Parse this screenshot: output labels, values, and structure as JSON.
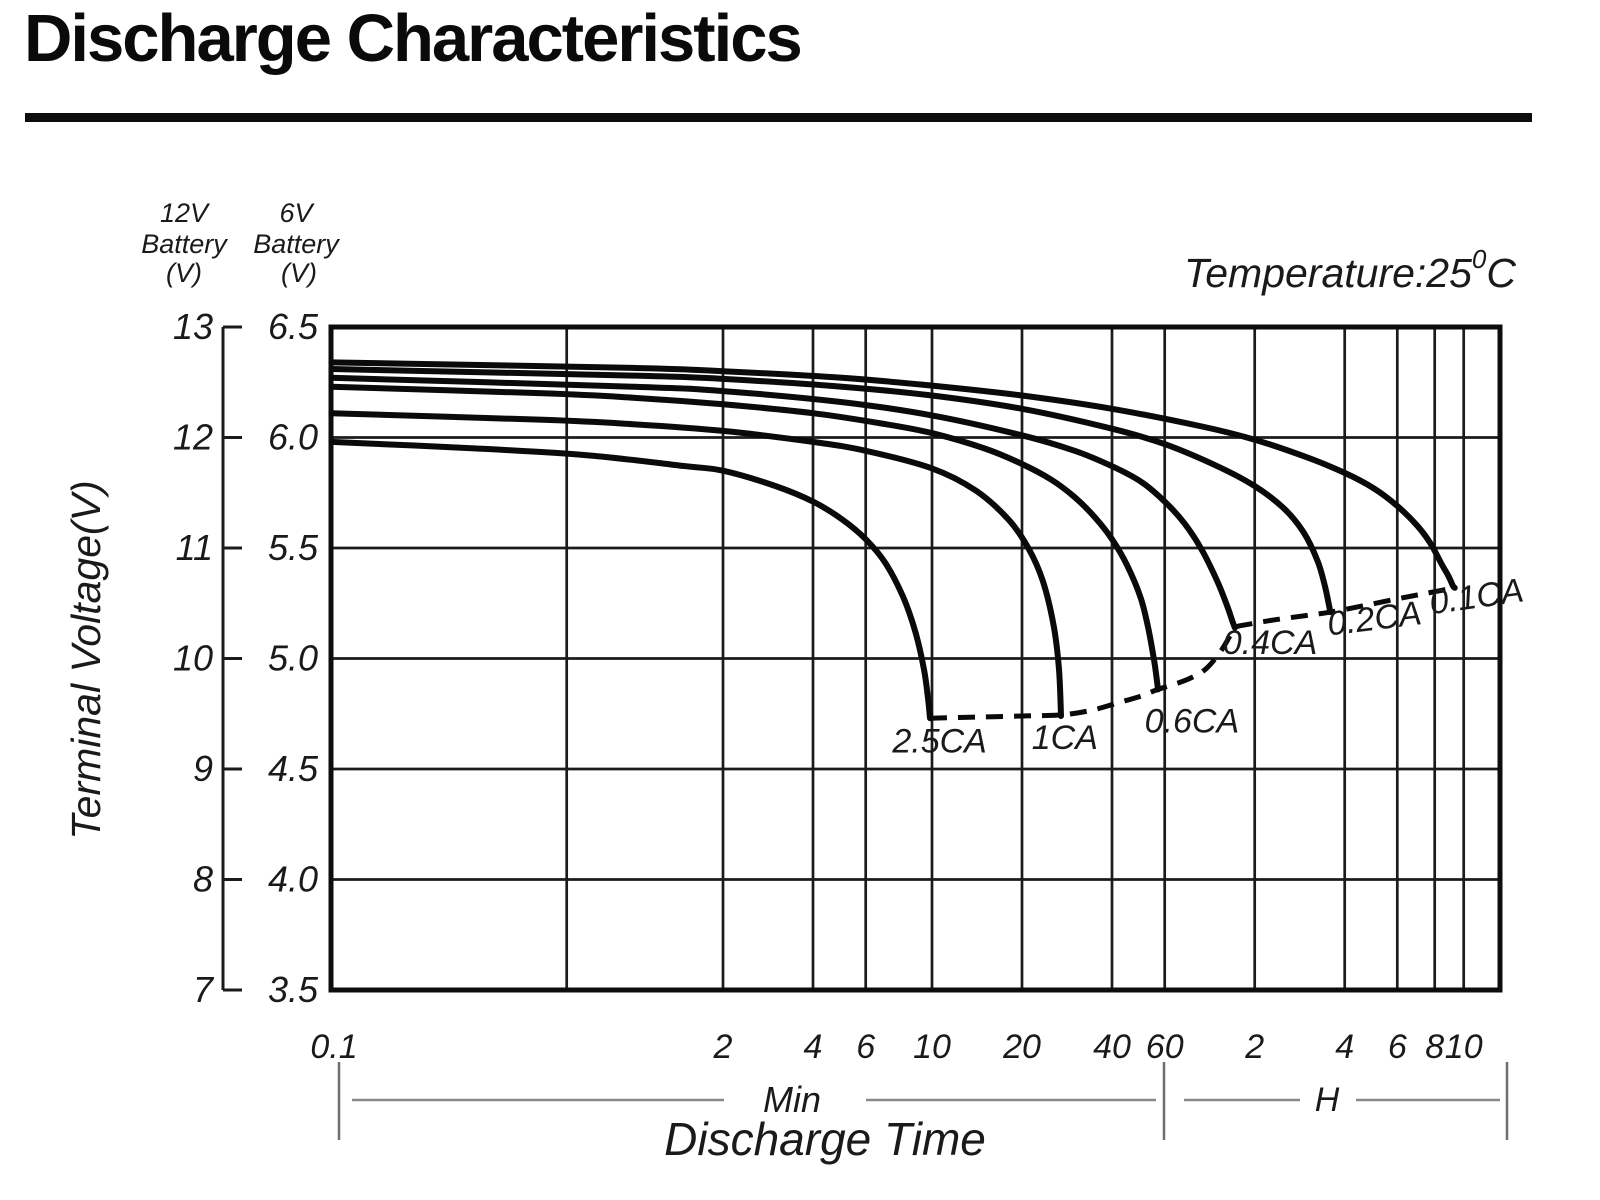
{
  "page": {
    "title": "Discharge Characteristics"
  },
  "header": {
    "axis12v_lines": [
      "12V",
      "Battery",
      "(V)"
    ],
    "axis6v_lines": [
      "6V",
      "Battery",
      "(V)"
    ],
    "temperature": {
      "prefix": "Temperature:25",
      "sup": "0",
      "suffix": "C"
    }
  },
  "axes": {
    "y_label": "Terminal Voltage(V)",
    "x_label": "Discharge Time",
    "unit_min": "Min",
    "unit_hour": "H",
    "y_ticks_12v": [
      "13",
      "12",
      "11",
      "10",
      "9",
      "8",
      "7"
    ],
    "y_ticks_6v": [
      "6.5",
      "6.0",
      "5.5",
      "5.0",
      "4.5",
      "4.0",
      "3.5"
    ]
  },
  "colors": {
    "curve": "#0a0a0a",
    "series_label": "#e62129"
  },
  "chart_data": {
    "type": "line",
    "title": "Discharge Characteristics",
    "xlabel": "Discharge Time",
    "ylabel": "Terminal Voltage(V)",
    "x_scale": "log",
    "x_unit": "minutes",
    "x_range_minutes": [
      0.1,
      800
    ],
    "y_range_6v": [
      3.5,
      6.5
    ],
    "y_range_12v": [
      7,
      13
    ],
    "temperature": "25°C",
    "grid": true,
    "x_gridlines_minutes": [
      0.6,
      2,
      4,
      6,
      10,
      20,
      40,
      60,
      120,
      240,
      360,
      480,
      600
    ],
    "y_gridlines_volts_6v": [
      6.5,
      6.0,
      5.5,
      5.0,
      4.5,
      4.0,
      3.5
    ],
    "x_ticks": [
      {
        "label": "0.1",
        "minutes": 0.1,
        "unit": "Min"
      },
      {
        "label": "2",
        "minutes": 2,
        "unit": "Min"
      },
      {
        "label": "4",
        "minutes": 4,
        "unit": "Min"
      },
      {
        "label": "6",
        "minutes": 6,
        "unit": "Min"
      },
      {
        "label": "10",
        "minutes": 10,
        "unit": "Min"
      },
      {
        "label": "20",
        "minutes": 20,
        "unit": "Min"
      },
      {
        "label": "40",
        "minutes": 40,
        "unit": "Min"
      },
      {
        "label": "60",
        "minutes": 60,
        "unit": "Min"
      },
      {
        "label": "2",
        "minutes": 120,
        "unit": "H"
      },
      {
        "label": "4",
        "minutes": 240,
        "unit": "H"
      },
      {
        "label": "6",
        "minutes": 360,
        "unit": "H"
      },
      {
        "label": "8",
        "minutes": 480,
        "unit": "H"
      },
      {
        "label": "10",
        "minutes": 600,
        "unit": "H"
      }
    ],
    "series": [
      {
        "name": "2.5CA",
        "label": {
          "text": "2.5CA",
          "t": 10.6,
          "v": 4.575,
          "rotate": 0
        },
        "points": [
          [
            0.098,
            5.98
          ],
          [
            0.3,
            5.95
          ],
          [
            0.7,
            5.92
          ],
          [
            1.5,
            5.87
          ],
          [
            2,
            5.85
          ],
          [
            3,
            5.78
          ],
          [
            4,
            5.71
          ],
          [
            5,
            5.63
          ],
          [
            6,
            5.54
          ],
          [
            7,
            5.43
          ],
          [
            8,
            5.28
          ],
          [
            8.8,
            5.12
          ],
          [
            9.4,
            4.95
          ],
          [
            9.7,
            4.82
          ],
          [
            9.85,
            4.73
          ]
        ]
      },
      {
        "name": "1CA",
        "label": {
          "text": "1CA",
          "t": 27.8,
          "v": 4.59,
          "rotate": 0
        },
        "points": [
          [
            0.098,
            6.11
          ],
          [
            0.5,
            6.08
          ],
          [
            1,
            6.06
          ],
          [
            2,
            6.03
          ],
          [
            4,
            5.98
          ],
          [
            6,
            5.94
          ],
          [
            10,
            5.86
          ],
          [
            14,
            5.76
          ],
          [
            18,
            5.63
          ],
          [
            21,
            5.5
          ],
          [
            23.5,
            5.35
          ],
          [
            25.5,
            5.15
          ],
          [
            26.6,
            4.95
          ],
          [
            27,
            4.74
          ]
        ]
      },
      {
        "name": "0.6CA",
        "label": {
          "text": "0.6CA",
          "t": 74,
          "v": 4.665,
          "rotate": 0
        },
        "points": [
          [
            0.098,
            6.23
          ],
          [
            0.5,
            6.2
          ],
          [
            1,
            6.18
          ],
          [
            2,
            6.15
          ],
          [
            4,
            6.11
          ],
          [
            7,
            6.06
          ],
          [
            10,
            6.02
          ],
          [
            15,
            5.95
          ],
          [
            20,
            5.88
          ],
          [
            25,
            5.81
          ],
          [
            30,
            5.73
          ],
          [
            35,
            5.64
          ],
          [
            40,
            5.54
          ],
          [
            45,
            5.42
          ],
          [
            50,
            5.27
          ],
          [
            53,
            5.13
          ],
          [
            55.5,
            4.98
          ],
          [
            57,
            4.86
          ]
        ]
      },
      {
        "name": "0.4CA",
        "label": {
          "text": "0.4CA",
          "t": 135,
          "v": 5.02,
          "rotate": 0
        },
        "points": [
          [
            0.098,
            6.27
          ],
          [
            1,
            6.23
          ],
          [
            2,
            6.21
          ],
          [
            5,
            6.16
          ],
          [
            10,
            6.1
          ],
          [
            20,
            6.01
          ],
          [
            30,
            5.94
          ],
          [
            40,
            5.87
          ],
          [
            50,
            5.8
          ],
          [
            60,
            5.71
          ],
          [
            70,
            5.61
          ],
          [
            80,
            5.49
          ],
          [
            90,
            5.35
          ],
          [
            97,
            5.24
          ],
          [
            101,
            5.17
          ],
          [
            103,
            5.14
          ]
        ]
      },
      {
        "name": "0.2CA",
        "label": {
          "text": "0.2CA",
          "t": 305,
          "v": 5.13,
          "rotate": -7
        },
        "points": [
          [
            0.098,
            6.31
          ],
          [
            1,
            6.28
          ],
          [
            2,
            6.265
          ],
          [
            5,
            6.23
          ],
          [
            10,
            6.19
          ],
          [
            20,
            6.13
          ],
          [
            40,
            6.04
          ],
          [
            60,
            5.97
          ],
          [
            90,
            5.87
          ],
          [
            120,
            5.78
          ],
          [
            150,
            5.68
          ],
          [
            175,
            5.57
          ],
          [
            195,
            5.44
          ],
          [
            206,
            5.33
          ],
          [
            212,
            5.25
          ],
          [
            215,
            5.21
          ]
        ]
      },
      {
        "name": "0.1CA",
        "label": {
          "text": "0.1CA",
          "t": 670,
          "v": 5.23,
          "rotate": -8
        },
        "points": [
          [
            0.098,
            6.34
          ],
          [
            1,
            6.315
          ],
          [
            2,
            6.3
          ],
          [
            5,
            6.27
          ],
          [
            10,
            6.235
          ],
          [
            20,
            6.19
          ],
          [
            40,
            6.13
          ],
          [
            80,
            6.05
          ],
          [
            120,
            5.99
          ],
          [
            180,
            5.91
          ],
          [
            240,
            5.84
          ],
          [
            300,
            5.77
          ],
          [
            360,
            5.69
          ],
          [
            420,
            5.6
          ],
          [
            465,
            5.52
          ],
          [
            505,
            5.43
          ],
          [
            535,
            5.37
          ],
          [
            552,
            5.33
          ],
          [
            560,
            5.32
          ]
        ]
      }
    ],
    "cutoff_voltage_line": {
      "style": "dashed",
      "points": [
        [
          9.85,
          4.73
        ],
        [
          14,
          4.735
        ],
        [
          20,
          4.74
        ],
        [
          27,
          4.745
        ],
        [
          34,
          4.765
        ],
        [
          42,
          4.8
        ],
        [
          50,
          4.83
        ],
        [
          57,
          4.86
        ],
        [
          70,
          4.9
        ],
        [
          82,
          4.95
        ],
        [
          92,
          5.03
        ],
        [
          99,
          5.1
        ],
        [
          103,
          5.14
        ],
        [
          115,
          5.155
        ],
        [
          140,
          5.175
        ],
        [
          180,
          5.195
        ],
        [
          215,
          5.21
        ],
        [
          280,
          5.24
        ],
        [
          360,
          5.27
        ],
        [
          450,
          5.295
        ],
        [
          560,
          5.32
        ]
      ]
    }
  }
}
